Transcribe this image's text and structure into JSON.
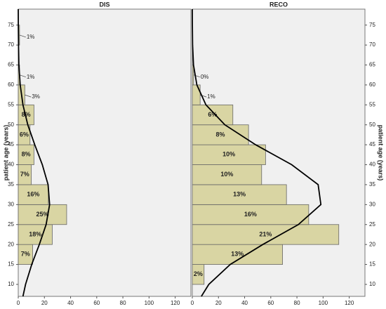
{
  "chart_data": [
    {
      "type": "histogram-horizontal",
      "title": "DIS",
      "ylabel": "patient age (years)",
      "yaxis_side": "left",
      "bins": [
        15,
        20,
        25,
        30,
        35,
        40,
        45,
        50,
        55,
        60,
        65,
        70,
        75
      ],
      "values": [
        11,
        26,
        37,
        23,
        10,
        12,
        9,
        12,
        5,
        1,
        0,
        1
      ],
      "percent_labels": [
        "7%",
        "18%",
        "25%",
        "16%",
        "7%",
        "8%",
        "6%",
        "8%",
        "3%",
        "1%",
        null,
        "1%"
      ],
      "color": "#d9d5a3",
      "curve": {
        "y": [
          7,
          10,
          15,
          20,
          25,
          30,
          35,
          40,
          45,
          50,
          55,
          60,
          65,
          70,
          75,
          79
        ],
        "x": [
          3.6,
          5.6,
          10.3,
          16.1,
          21.3,
          24.0,
          22.8,
          18.4,
          12.6,
          7.3,
          3.6,
          1.5,
          0.5,
          0.2,
          0.05,
          0
        ]
      },
      "xlim": [
        0,
        132
      ],
      "xticks": [
        0,
        20,
        40,
        60,
        80,
        100,
        120
      ],
      "ylim": [
        7,
        79
      ],
      "yticks": [
        10,
        15,
        20,
        25,
        30,
        35,
        40,
        45,
        50,
        55,
        60,
        65,
        70,
        75
      ]
    },
    {
      "type": "histogram-horizontal",
      "title": "RECO",
      "ylabel": "patient age (years)",
      "yaxis_side": "right",
      "bins": [
        10,
        15,
        20,
        25,
        30,
        35,
        40,
        45,
        50,
        55,
        60,
        65
      ],
      "values": [
        9,
        69,
        112,
        89,
        72,
        53,
        56,
        43,
        31,
        6,
        1
      ],
      "percent_labels": [
        "2%",
        "13%",
        "21%",
        "16%",
        "13%",
        "10%",
        "10%",
        "8%",
        "6%",
        "1%",
        "0%"
      ],
      "color": "#d9d5a3",
      "curve": {
        "y": [
          7,
          10,
          15,
          20,
          25,
          30,
          35,
          40,
          45,
          50,
          55,
          60,
          65,
          70,
          75,
          79
        ],
        "x": [
          6.9,
          12.6,
          29.0,
          53.9,
          81.1,
          98.3,
          96.2,
          76.0,
          48.4,
          24.9,
          10.4,
          3.5,
          0.9,
          0.2,
          0.03,
          0
        ]
      },
      "xlim": [
        0,
        132
      ],
      "xticks": [
        0,
        20,
        40,
        60,
        80,
        100,
        120
      ],
      "ylim": [
        7,
        79
      ],
      "yticks": [
        10,
        15,
        20,
        25,
        30,
        35,
        40,
        45,
        50,
        55,
        60,
        65,
        70,
        75
      ]
    }
  ]
}
